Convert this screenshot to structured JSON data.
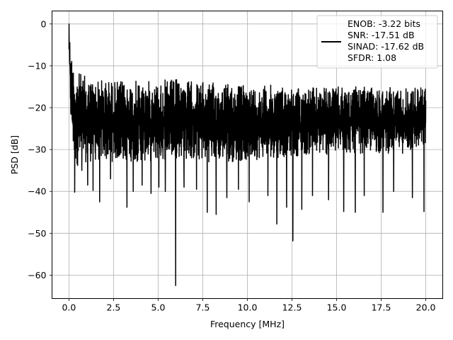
{
  "chart_data": {
    "type": "line",
    "title": "",
    "xlabel": "Frequency [MHz]",
    "ylabel": "PSD [dB]",
    "xlim": [
      -0.95,
      20.95
    ],
    "ylim": [
      -65.6,
      3.1
    ],
    "xticks": [
      0.0,
      2.5,
      5.0,
      7.5,
      10.0,
      12.5,
      15.0,
      17.5,
      20.0
    ],
    "xtick_labels": [
      "0.0",
      "2.5",
      "5.0",
      "7.5",
      "10.0",
      "12.5",
      "15.0",
      "17.5",
      "20.0"
    ],
    "yticks": [
      0,
      -10,
      -20,
      -30,
      -40,
      -50,
      -60
    ],
    "ytick_labels": [
      "0",
      "−10",
      "−20",
      "−30",
      "−40",
      "−50",
      "−60"
    ],
    "grid": true,
    "legend_position": "top-right",
    "legend_lines": [
      "ENOB: -3.22 bits",
      "SNR: -17.51 dB",
      "SINAD: -17.62 dB",
      "SFDR: 1.08"
    ],
    "series_color": "#000000",
    "envelope": {
      "x": [
        0.0,
        0.1,
        0.3,
        0.6,
        1.0,
        1.5,
        2.0,
        3.0,
        4.0,
        5.0,
        6.0,
        7.0,
        8.0,
        9.0,
        10.0,
        11.0,
        12.0,
        13.0,
        14.0,
        15.0,
        16.0,
        17.0,
        18.0,
        19.0,
        20.0
      ],
      "upper": [
        0.0,
        -6.0,
        -10.0,
        -11.5,
        -12.5,
        -13.0,
        -13.0,
        -13.5,
        -13.5,
        -13.5,
        -13.0,
        -13.5,
        -14.0,
        -14.0,
        -14.5,
        -14.5,
        -14.5,
        -15.0,
        -15.0,
        -15.0,
        -15.0,
        -15.0,
        -15.0,
        -15.0,
        -14.5
      ],
      "lower": [
        -8.0,
        -24.0,
        -34.0,
        -34.0,
        -33.0,
        -33.0,
        -33.0,
        -33.0,
        -33.0,
        -33.0,
        -32.0,
        -33.0,
        -33.0,
        -33.0,
        -33.0,
        -32.0,
        -32.0,
        -31.5,
        -31.5,
        -31.5,
        -31.0,
        -31.0,
        -31.0,
        -31.0,
        -30.0
      ]
    },
    "spikes": [
      {
        "x": 0.32,
        "y": -40.2
      },
      {
        "x": 0.72,
        "y": -35.0
      },
      {
        "x": 1.05,
        "y": -38.5
      },
      {
        "x": 1.35,
        "y": -39.8
      },
      {
        "x": 1.72,
        "y": -42.5
      },
      {
        "x": 2.33,
        "y": -37.0
      },
      {
        "x": 3.25,
        "y": -43.8
      },
      {
        "x": 3.6,
        "y": -40.0
      },
      {
        "x": 4.1,
        "y": -38.5
      },
      {
        "x": 4.6,
        "y": -40.5
      },
      {
        "x": 5.04,
        "y": -39.0
      },
      {
        "x": 5.4,
        "y": -40.0
      },
      {
        "x": 5.98,
        "y": -62.5
      },
      {
        "x": 6.45,
        "y": -39.0
      },
      {
        "x": 7.15,
        "y": -39.5
      },
      {
        "x": 7.75,
        "y": -45.0
      },
      {
        "x": 8.25,
        "y": -45.5
      },
      {
        "x": 8.85,
        "y": -41.5
      },
      {
        "x": 9.5,
        "y": -39.5
      },
      {
        "x": 10.1,
        "y": -42.5
      },
      {
        "x": 11.15,
        "y": -41.0
      },
      {
        "x": 11.65,
        "y": -47.8
      },
      {
        "x": 12.2,
        "y": -43.8
      },
      {
        "x": 12.55,
        "y": -51.8
      },
      {
        "x": 13.05,
        "y": -44.3
      },
      {
        "x": 13.65,
        "y": -41.0
      },
      {
        "x": 14.55,
        "y": -42.0
      },
      {
        "x": 15.4,
        "y": -44.8
      },
      {
        "x": 16.05,
        "y": -45.0
      },
      {
        "x": 16.55,
        "y": -41.0
      },
      {
        "x": 17.6,
        "y": -45.0
      },
      {
        "x": 18.2,
        "y": -40.0
      },
      {
        "x": 19.25,
        "y": -41.5
      },
      {
        "x": 19.9,
        "y": -44.8
      }
    ]
  }
}
